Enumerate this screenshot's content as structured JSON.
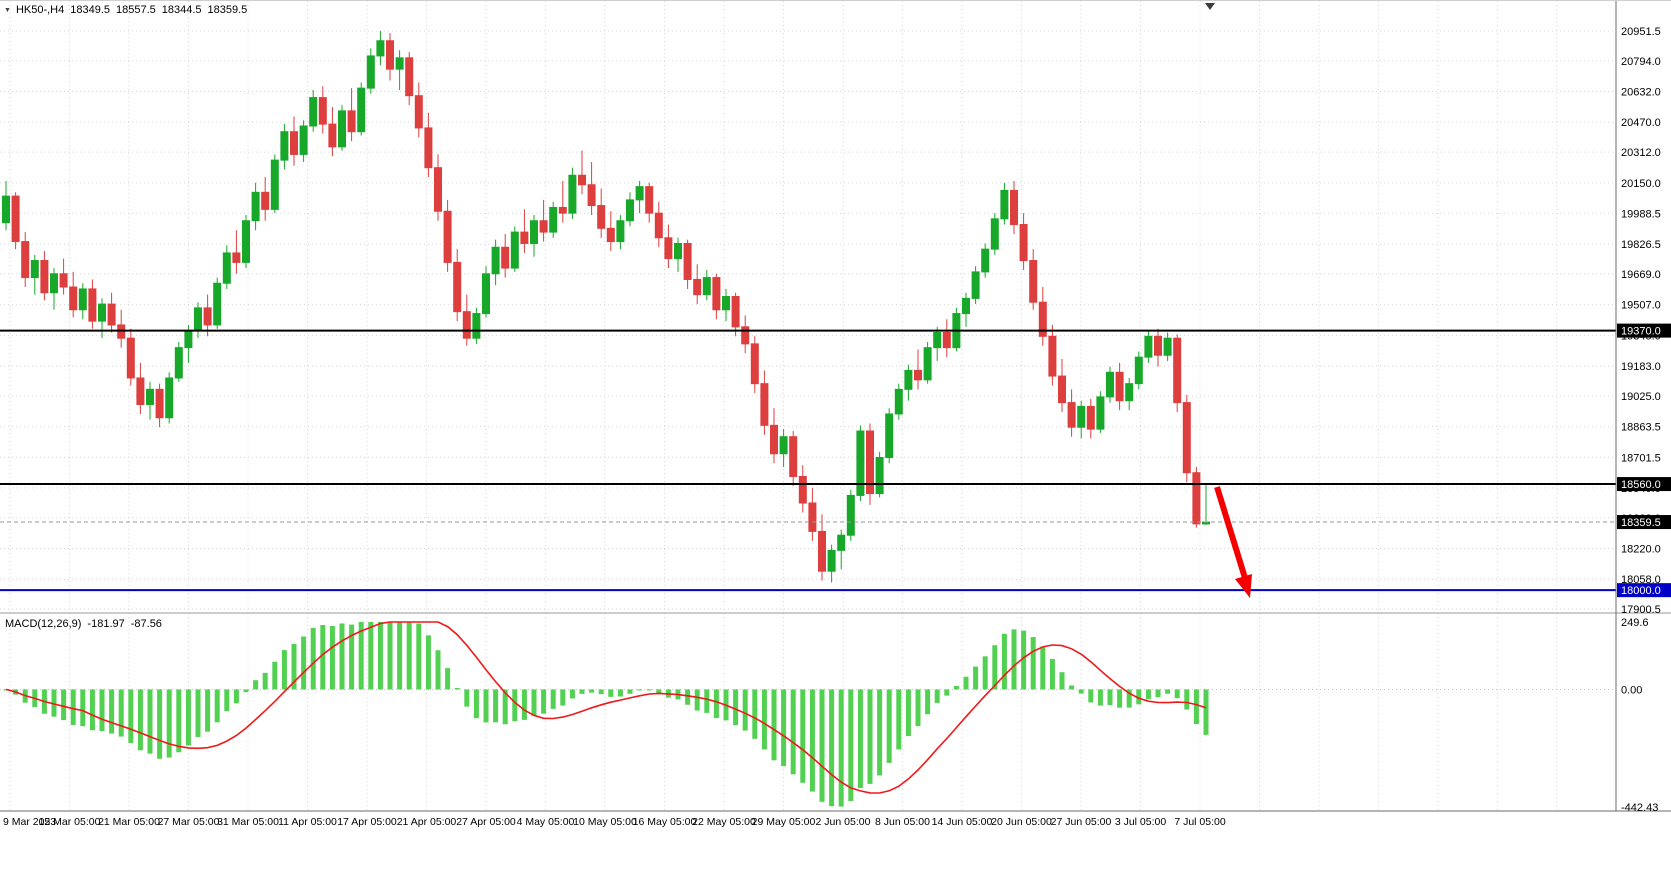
{
  "icons": {
    "symbol_marker": "▼"
  },
  "chart_data": {
    "type": "candlestick",
    "title": "HK50-,H4",
    "symbol": "HK50-",
    "timeframe": "H4",
    "ohlc_display": {
      "open": "18349.5",
      "high": "18557.5",
      "low": "18344.5",
      "close": "18359.5"
    },
    "price_axis": {
      "max": 20951.5,
      "min": 17900.5,
      "ticks": [
        "20951.5",
        "20794.0",
        "20632.0",
        "20470.0",
        "20312.0",
        "20150.0",
        "19988.5",
        "19826.5",
        "19669.0",
        "19507.0",
        "19345.0",
        "19183.0",
        "19025.0",
        "18863.5",
        "18701.5",
        "18540.0",
        "18382.0",
        "18220.0",
        "18058.0",
        "17900.5"
      ]
    },
    "time_axis": [
      "9 Mar 2023",
      "15 Mar 05:00",
      "21 Mar 05:00",
      "27 Mar 05:00",
      "31 Mar 05:00",
      "11 Apr 05:00",
      "17 Apr 05:00",
      "21 Apr 05:00",
      "27 Apr 05:00",
      "4 May 05:00",
      "10 May 05:00",
      "16 May 05:00",
      "22 May 05:00",
      "29 May 05:00",
      "2 Jun 05:00",
      "8 Jun 05:00",
      "14 Jun 05:00",
      "20 Jun 05:00",
      "27 Jun 05:00",
      "3 Jul 05:00",
      "7 Jul 05:00"
    ],
    "hlines": [
      {
        "price": 19370.0,
        "label": "19370.0",
        "style": "solid",
        "colorKey": "black"
      },
      {
        "price": 18560.0,
        "label": "18560.0",
        "style": "solid",
        "colorKey": "black"
      },
      {
        "price": 18000.0,
        "label": "18000.0",
        "style": "solid",
        "colorKey": "blue"
      }
    ],
    "current_price": {
      "price": 18359.5,
      "label": "18359.5"
    },
    "indicator": {
      "label": "MACD(12,26,9)",
      "value": "-181.97",
      "signal_value": "-87.56",
      "range_max": 249.6,
      "range_min": -442.43,
      "scale_labels": [
        "249.6",
        "0.00",
        "-442.43"
      ]
    },
    "colors": {
      "up": "#17A82A",
      "down": "#DD3E3E",
      "grid": "#D6D6D6",
      "histogram": "#52D052",
      "signal": "#F01818",
      "hline_black": "#000000",
      "hline_blue": "#0000C8",
      "arrow": "#F50000",
      "badge_text": "#FFFFFF"
    },
    "candles": [
      [
        19940,
        20160,
        19900,
        20080
      ],
      [
        20080,
        20100,
        19800,
        19840
      ],
      [
        19840,
        19890,
        19600,
        19650
      ],
      [
        19650,
        19770,
        19560,
        19740
      ],
      [
        19740,
        19790,
        19530,
        19570
      ],
      [
        19570,
        19700,
        19480,
        19670
      ],
      [
        19670,
        19750,
        19560,
        19600
      ],
      [
        19600,
        19680,
        19440,
        19480
      ],
      [
        19480,
        19620,
        19430,
        19590
      ],
      [
        19590,
        19640,
        19380,
        19420
      ],
      [
        19420,
        19540,
        19330,
        19510
      ],
      [
        19510,
        19570,
        19360,
        19400
      ],
      [
        19400,
        19480,
        19280,
        19330
      ],
      [
        19330,
        19380,
        19080,
        19120
      ],
      [
        19120,
        19200,
        18930,
        18980
      ],
      [
        18980,
        19100,
        18900,
        19060
      ],
      [
        19060,
        19090,
        18860,
        18910
      ],
      [
        18910,
        19150,
        18880,
        19120
      ],
      [
        19120,
        19310,
        19100,
        19280
      ],
      [
        19280,
        19400,
        19200,
        19370
      ],
      [
        19370,
        19520,
        19330,
        19490
      ],
      [
        19490,
        19560,
        19340,
        19400
      ],
      [
        19400,
        19650,
        19380,
        19620
      ],
      [
        19620,
        19820,
        19590,
        19780
      ],
      [
        19780,
        19900,
        19670,
        19730
      ],
      [
        19730,
        19980,
        19700,
        19950
      ],
      [
        19950,
        20150,
        19900,
        20100
      ],
      [
        20100,
        20180,
        19950,
        20010
      ],
      [
        20010,
        20300,
        19990,
        20270
      ],
      [
        20270,
        20460,
        20220,
        20420
      ],
      [
        20420,
        20500,
        20240,
        20300
      ],
      [
        20300,
        20480,
        20260,
        20450
      ],
      [
        20450,
        20640,
        20420,
        20600
      ],
      [
        20600,
        20660,
        20410,
        20460
      ],
      [
        20460,
        20550,
        20290,
        20340
      ],
      [
        20340,
        20560,
        20320,
        20530
      ],
      [
        20530,
        20650,
        20370,
        20420
      ],
      [
        20420,
        20680,
        20400,
        20650
      ],
      [
        20650,
        20860,
        20620,
        20820
      ],
      [
        20820,
        20951.5,
        20770,
        20900
      ],
      [
        20900,
        20940,
        20690,
        20750
      ],
      [
        20750,
        20850,
        20640,
        20810
      ],
      [
        20810,
        20840,
        20560,
        20610
      ],
      [
        20610,
        20680,
        20390,
        20440
      ],
      [
        20440,
        20520,
        20180,
        20230
      ],
      [
        20230,
        20300,
        19950,
        20000
      ],
      [
        20000,
        20060,
        19680,
        19730
      ],
      [
        19730,
        19800,
        19420,
        19470
      ],
      [
        19470,
        19560,
        19290,
        19330
      ],
      [
        19330,
        19490,
        19300,
        19460
      ],
      [
        19460,
        19710,
        19440,
        19670
      ],
      [
        19670,
        19850,
        19610,
        19810
      ],
      [
        19810,
        19880,
        19650,
        19700
      ],
      [
        19700,
        19920,
        19680,
        19890
      ],
      [
        19890,
        20010,
        19780,
        19830
      ],
      [
        19830,
        19980,
        19760,
        19950
      ],
      [
        19950,
        20060,
        19840,
        19890
      ],
      [
        19890,
        20050,
        19860,
        20020
      ],
      [
        20020,
        20160,
        19940,
        19990
      ],
      [
        19990,
        20230,
        19960,
        20190
      ],
      [
        20190,
        20320,
        20090,
        20140
      ],
      [
        20140,
        20260,
        19980,
        20030
      ],
      [
        20030,
        20120,
        19860,
        19910
      ],
      [
        19910,
        20000,
        19790,
        19840
      ],
      [
        19840,
        19980,
        19800,
        19950
      ],
      [
        19950,
        20100,
        19920,
        20060
      ],
      [
        20060,
        20160,
        19990,
        20130
      ],
      [
        20130,
        20150,
        19940,
        19990
      ],
      [
        19990,
        20050,
        19810,
        19860
      ],
      [
        19860,
        19930,
        19700,
        19750
      ],
      [
        19750,
        19860,
        19680,
        19830
      ],
      [
        19830,
        19850,
        19590,
        19640
      ],
      [
        19640,
        19720,
        19510,
        19560
      ],
      [
        19560,
        19690,
        19530,
        19650
      ],
      [
        19650,
        19670,
        19430,
        19480
      ],
      [
        19480,
        19590,
        19420,
        19550
      ],
      [
        19550,
        19570,
        19340,
        19390
      ],
      [
        19390,
        19450,
        19250,
        19300
      ],
      [
        19300,
        19340,
        19040,
        19090
      ],
      [
        19090,
        19160,
        18820,
        18870
      ],
      [
        18870,
        18960,
        18670,
        18720
      ],
      [
        18720,
        18850,
        18650,
        18810
      ],
      [
        18810,
        18840,
        18550,
        18600
      ],
      [
        18600,
        18660,
        18410,
        18460
      ],
      [
        18460,
        18540,
        18260,
        18310
      ],
      [
        18310,
        18400,
        18050,
        18100
      ],
      [
        18100,
        18240,
        18040,
        18210
      ],
      [
        18210,
        18320,
        18110,
        18290
      ],
      [
        18290,
        18530,
        18260,
        18500
      ],
      [
        18500,
        18870,
        18470,
        18840
      ],
      [
        18840,
        18880,
        18450,
        18510
      ],
      [
        18510,
        18730,
        18490,
        18700
      ],
      [
        18700,
        18960,
        18670,
        18930
      ],
      [
        18930,
        19090,
        18900,
        19060
      ],
      [
        19060,
        19190,
        19000,
        19160
      ],
      [
        19160,
        19270,
        19060,
        19110
      ],
      [
        19110,
        19310,
        19090,
        19280
      ],
      [
        19280,
        19390,
        19210,
        19360
      ],
      [
        19360,
        19430,
        19230,
        19280
      ],
      [
        19280,
        19490,
        19260,
        19460
      ],
      [
        19460,
        19570,
        19390,
        19540
      ],
      [
        19540,
        19710,
        19510,
        19680
      ],
      [
        19680,
        19830,
        19650,
        19800
      ],
      [
        19800,
        19990,
        19770,
        19960
      ],
      [
        19960,
        20150,
        19930,
        20110
      ],
      [
        20110,
        20160,
        19880,
        19930
      ],
      [
        19930,
        19990,
        19690,
        19740
      ],
      [
        19740,
        19800,
        19480,
        19520
      ],
      [
        19520,
        19600,
        19290,
        19340
      ],
      [
        19340,
        19400,
        19080,
        19130
      ],
      [
        19130,
        19220,
        18940,
        18990
      ],
      [
        18990,
        19060,
        18810,
        18860
      ],
      [
        18860,
        19000,
        18800,
        18970
      ],
      [
        18970,
        19010,
        18800,
        18850
      ],
      [
        18850,
        19050,
        18830,
        19020
      ],
      [
        19020,
        19180,
        18990,
        19150
      ],
      [
        19150,
        19200,
        18950,
        19000
      ],
      [
        19000,
        19120,
        18950,
        19090
      ],
      [
        19090,
        19260,
        19060,
        19230
      ],
      [
        19230,
        19370,
        19200,
        19340
      ],
      [
        19340,
        19380,
        19180,
        19240
      ],
      [
        19240,
        19360,
        19210,
        19330
      ],
      [
        19330,
        19350,
        18940,
        18990
      ],
      [
        18990,
        19030,
        18570,
        18620
      ],
      [
        18620,
        18650,
        18330,
        18350
      ],
      [
        18349.5,
        18557.5,
        18344.5,
        18359.5
      ]
    ],
    "annotation_arrow": {
      "color": "#F50000",
      "direction": "down-right"
    }
  }
}
